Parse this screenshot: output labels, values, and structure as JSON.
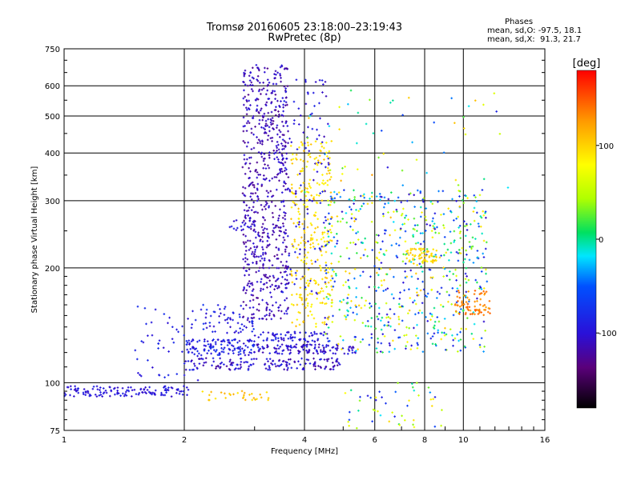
{
  "title": {
    "line1": "Tromsø 20160605 23:18:00–23:19:43",
    "line2": "RwPretec (8p)"
  },
  "stats": {
    "heading": "Phases",
    "line_o": "mean, sd,O: -97.5, 18.1",
    "line_x": "mean, sd,X:  91.3, 21.7"
  },
  "colorbar": {
    "label": "[deg]",
    "ticks": [
      "100",
      "0",
      "-100"
    ],
    "tick_values": [
      100,
      0,
      -100
    ],
    "range": [
      -180,
      180
    ]
  },
  "chart_data": {
    "type": "scatter",
    "xlabel": "Frequency [MHz]",
    "ylabel": "Stationary phase Virtual Height [km]",
    "xscale": "log",
    "yscale": "log",
    "xlim": [
      1,
      16
    ],
    "ylim": [
      75,
      750
    ],
    "xticks": [
      1,
      2,
      4,
      6,
      8,
      10,
      16
    ],
    "xtick_labels": [
      "1",
      "2",
      "4",
      "6",
      "8",
      "10",
      "16"
    ],
    "yticks": [
      75,
      100,
      200,
      300,
      400,
      500,
      600,
      750
    ],
    "ytick_labels": [
      "75",
      "100",
      "200",
      "300",
      "400",
      "500",
      "600",
      "750"
    ],
    "grid": true,
    "colorscale": "rainbow (black-purple-blue-cyan-green-yellow-orange-red)",
    "color_variable": "phase [deg]",
    "clusters": [
      {
        "name": "o-trace low E",
        "x": [
          1.0,
          2.05
        ],
        "y": [
          92,
          98
        ],
        "phase": [
          -110,
          -85
        ],
        "n": 130
      },
      {
        "name": "o-trace spread E",
        "x": [
          1.5,
          2.2
        ],
        "y": [
          100,
          160
        ],
        "phase": [
          -105,
          -75
        ],
        "n": 50
      },
      {
        "name": "o-trace 125 km",
        "x": [
          2.0,
          3.0
        ],
        "y": [
          118,
          130
        ],
        "phase": [
          -110,
          -70
        ],
        "n": 130
      },
      {
        "name": "o-trace 112 km",
        "x": [
          2.0,
          5.0
        ],
        "y": [
          108,
          116
        ],
        "phase": [
          -125,
          -85
        ],
        "n": 150
      },
      {
        "name": "o-trace 122 km",
        "x": [
          3.0,
          5.5
        ],
        "y": [
          119,
          126
        ],
        "phase": [
          -120,
          -85
        ],
        "n": 120
      },
      {
        "name": "o-trace 132 km",
        "x": [
          3.0,
          4.6
        ],
        "y": [
          128,
          136
        ],
        "phase": [
          -110,
          -80
        ],
        "n": 70
      },
      {
        "name": "o-trace 145 km",
        "x": [
          2.2,
          3.0
        ],
        "y": [
          135,
          160
        ],
        "phase": [
          -110,
          -70
        ],
        "n": 60
      },
      {
        "name": "o-trace F column",
        "x": [
          2.8,
          3.65
        ],
        "y": [
          145,
          680
        ],
        "phase": [
          -130,
          -95
        ],
        "n": 650
      },
      {
        "name": "o-trace upper F",
        "x": [
          2.6,
          3.0
        ],
        "y": [
          250,
          270
        ],
        "phase": [
          -110,
          -90
        ],
        "n": 20
      },
      {
        "name": "o-trace near 4 MHz",
        "x": [
          3.5,
          4.6
        ],
        "y": [
          170,
          640
        ],
        "phase": [
          -115,
          -80
        ],
        "n": 120
      },
      {
        "name": "x-trace column",
        "x": [
          3.7,
          4.7
        ],
        "y": [
          140,
          430
        ],
        "phase": [
          80,
          110
        ],
        "n": 280
      },
      {
        "name": "mixed mid band",
        "x": [
          4.5,
          11.5
        ],
        "y": [
          120,
          320
        ],
        "phase": [
          -110,
          110
        ],
        "n": 650
      },
      {
        "name": "x-trace 215 km",
        "x": [
          7.2,
          8.6
        ],
        "y": [
          205,
          225
        ],
        "phase": [
          90,
          110
        ],
        "n": 60
      },
      {
        "name": "x-trace rising",
        "x": [
          9.5,
          11.8
        ],
        "y": [
          150,
          175
        ],
        "phase": [
          120,
          150
        ],
        "n": 70
      },
      {
        "name": "x-trace low",
        "x": [
          2.2,
          3.3
        ],
        "y": [
          90,
          96
        ],
        "phase": [
          90,
          120
        ],
        "n": 30
      },
      {
        "name": "sparse high",
        "x": [
          4.0,
          13.0
        ],
        "y": [
          300,
          600
        ],
        "phase": [
          -100,
          130
        ],
        "n": 60
      },
      {
        "name": "sparse low",
        "x": [
          5.0,
          9.0
        ],
        "y": [
          76,
          100
        ],
        "phase": [
          -100,
          100
        ],
        "n": 50
      }
    ]
  }
}
